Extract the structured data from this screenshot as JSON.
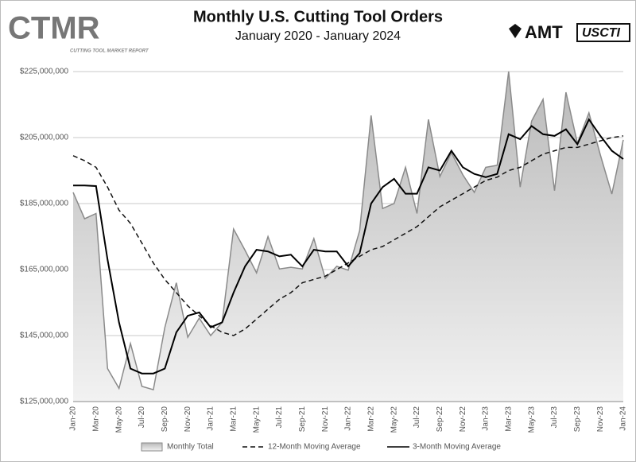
{
  "branding": {
    "left": "CTMR",
    "left_sub": "CUTTING TOOL MARKET REPORT",
    "right": [
      "AMT",
      "USCTI"
    ]
  },
  "chart_data": {
    "type": "line",
    "title": "Monthly U.S. Cutting Tool Orders",
    "subtitle": "January 2020 - January 2024",
    "categories": [
      "Jan-20",
      null,
      "Mar-20",
      null,
      "May-20",
      null,
      "Jul-20",
      null,
      "Sep-20",
      null,
      "Nov-20",
      null,
      "Jan-21",
      null,
      "Mar-21",
      null,
      "May-21",
      null,
      "Jul-21",
      null,
      "Sep-21",
      null,
      "Nov-21",
      null,
      "Jan-22",
      null,
      "Mar-22",
      null,
      "May-22",
      null,
      "Jul-22",
      null,
      "Sep-22",
      null,
      "Nov-22",
      null,
      "Jan-23",
      null,
      "Mar-23",
      null,
      "May-23",
      null,
      "Jul-23",
      null,
      "Sep-23",
      null,
      "Nov-23",
      null,
      "Jan-24"
    ],
    "series": [
      {
        "name": "Monthly Total",
        "kind": "area",
        "color": "#8a8a8a",
        "values": [
          188400000,
          180400000,
          182000000,
          135000000,
          129000000,
          142600000,
          129600000,
          128600000,
          147400000,
          161000000,
          144500000,
          150300000,
          145000000,
          149000000,
          177300000,
          170800000,
          164000000,
          175000000,
          165200000,
          165700000,
          165200000,
          174400000,
          162300000,
          166000000,
          164800000,
          176800000,
          211700000,
          183500000,
          185000000,
          196000000,
          182000000,
          210500000,
          193200000,
          200400000,
          193700000,
          188400000,
          196000000,
          196600000,
          225000000,
          190000000,
          210000000,
          216600000,
          188900000,
          218700000,
          203300000,
          212500000,
          199700000,
          187900000,
          204300000
        ]
      },
      {
        "name": "12-Month Moving Average",
        "kind": "dashed",
        "color": "#111111",
        "values": [
          199500000,
          198000000,
          196000000,
          190000000,
          183000000,
          179000000,
          173000000,
          167000000,
          162000000,
          158000000,
          154000000,
          151000000,
          148000000,
          146000000,
          145000000,
          147000000,
          150000000,
          153000000,
          156000000,
          158000000,
          161000000,
          162000000,
          163000000,
          165000000,
          167000000,
          169000000,
          171000000,
          172000000,
          174000000,
          176000000,
          178000000,
          181000000,
          184000000,
          186000000,
          188000000,
          190000000,
          192000000,
          193000000,
          195000000,
          196000000,
          198000000,
          200000000,
          201000000,
          202000000,
          202000000,
          203000000,
          204000000,
          205000000,
          205500000
        ]
      },
      {
        "name": "3-Month Moving Average",
        "kind": "solid",
        "color": "#000000",
        "values": [
          190500000,
          190500000,
          190300000,
          168000000,
          149000000,
          135000000,
          133500000,
          133500000,
          135000000,
          146000000,
          151000000,
          152000000,
          147500000,
          149000000,
          158000000,
          166000000,
          171000000,
          170500000,
          169000000,
          169500000,
          166000000,
          171000000,
          170500000,
          170500000,
          166000000,
          170000000,
          185000000,
          190000000,
          192500000,
          188000000,
          188000000,
          196000000,
          195000000,
          201000000,
          196000000,
          194000000,
          193000000,
          194000000,
          206000000,
          204500000,
          208500000,
          206000000,
          205500000,
          207500000,
          203000000,
          210500000,
          205500000,
          201000000,
          198500000
        ]
      }
    ],
    "ylim": [
      125000000,
      225000000
    ],
    "yticks": [
      {
        "value": 125000000,
        "label": "$125,000,000"
      },
      {
        "value": 145000000,
        "label": "$145,000,000"
      },
      {
        "value": 165000000,
        "label": "$165,000,000"
      },
      {
        "value": 185000000,
        "label": "$185,000,000"
      },
      {
        "value": 205000000,
        "label": "$205,000,000"
      },
      {
        "value": 225000000,
        "label": "$225,000,000"
      }
    ],
    "grid": true,
    "legend": "bottom"
  }
}
